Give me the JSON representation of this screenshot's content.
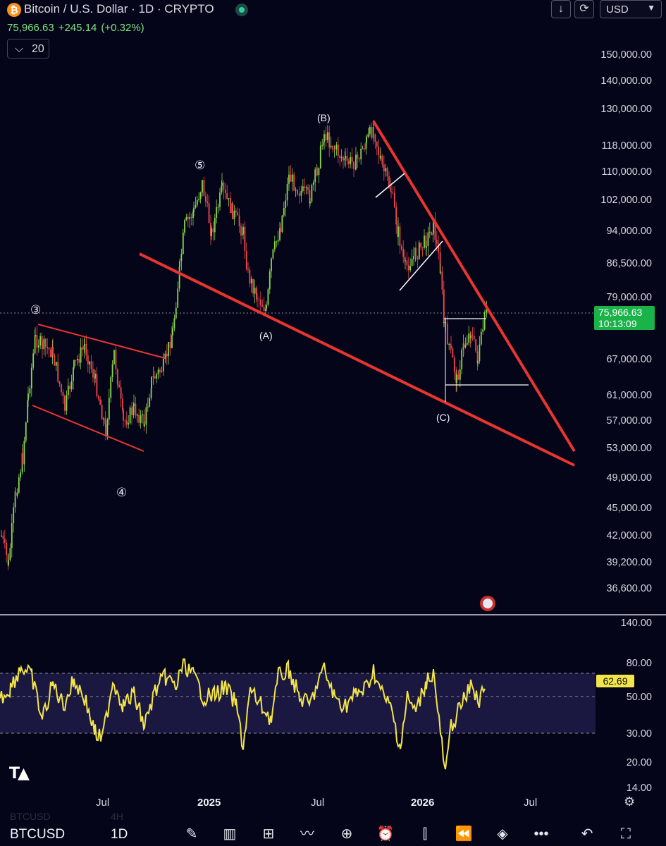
{
  "header": {
    "title": "Bitcoin / U.S. Dollar · 1D · CRYPTO",
    "logo_glyph": "₿",
    "price": "75,966.63",
    "change": "+245.14",
    "change_pct": "(+0.32%)",
    "ma_length": "20",
    "currency": "USD"
  },
  "price_axis": {
    "labels": [
      "150,000.00",
      "140,000.00",
      "130,000.00",
      "118,000.00",
      "110,000.00",
      "102,000.00",
      "94,000.00",
      "86,500.00",
      "79,000.00",
      "67,000.00",
      "61,000.00",
      "57,000.00",
      "53,000.00",
      "49,000.00",
      "45,000.00",
      "42,000.00",
      "39,200.00",
      "36,600.00"
    ],
    "current_price": "75,966.63",
    "countdown": "10:13:09",
    "scale": "log"
  },
  "rsi_axis": {
    "labels": [
      "140.00",
      "80.00",
      "50.00",
      "30.00",
      "20.00",
      "14.00"
    ],
    "current_value": "62.69"
  },
  "time_axis": {
    "labels": [
      "Jul",
      "2025",
      "Jul",
      "2026",
      "Jul"
    ]
  },
  "wave_labels": {
    "w3": "③",
    "w4": "④",
    "w5": "⑤",
    "A": "(A)",
    "B": "(B)",
    "C": "(C)"
  },
  "bottom_bar": {
    "symbol": "BTCUSD",
    "interval": "1D",
    "ghost_symbol": "BTCUSD",
    "ghost_interval": "4H",
    "icons": [
      "brush-icon",
      "chart-type-icon",
      "grid-icon",
      "indicators-icon",
      "add-icon",
      "alert-icon",
      "candles-icon",
      "replay-icon",
      "layers-icon",
      "more-icon",
      "undo-icon",
      "fullscreen-icon"
    ]
  },
  "colors": {
    "background": "#05051a",
    "up": "#8ad64a",
    "down": "#ef4a4a",
    "trendline": "#e8352f",
    "rsi": "#f2e44a",
    "price_tag": "#19b34a"
  },
  "chart_data": {
    "type": "candlestick",
    "symbol": "BTCUSD",
    "interval": "1D",
    "last_price": 75966.63,
    "ylim": [
      36600,
      150000
    ],
    "x_ticks": [
      "Jul",
      "2025",
      "Jul",
      "2026",
      "Jul"
    ],
    "swing_points": [
      {
        "label": "③",
        "price": 73800
      },
      {
        "label": "④",
        "price": 49000
      },
      {
        "label": "⑤",
        "price": 108000
      },
      {
        "label": "(A)",
        "price": 76000
      },
      {
        "label": "(B)",
        "price": 126000
      },
      {
        "label": "(C)",
        "price": 60000
      }
    ],
    "rsi": {
      "current": 62.69,
      "bands": [
        30,
        50,
        70
      ]
    }
  }
}
